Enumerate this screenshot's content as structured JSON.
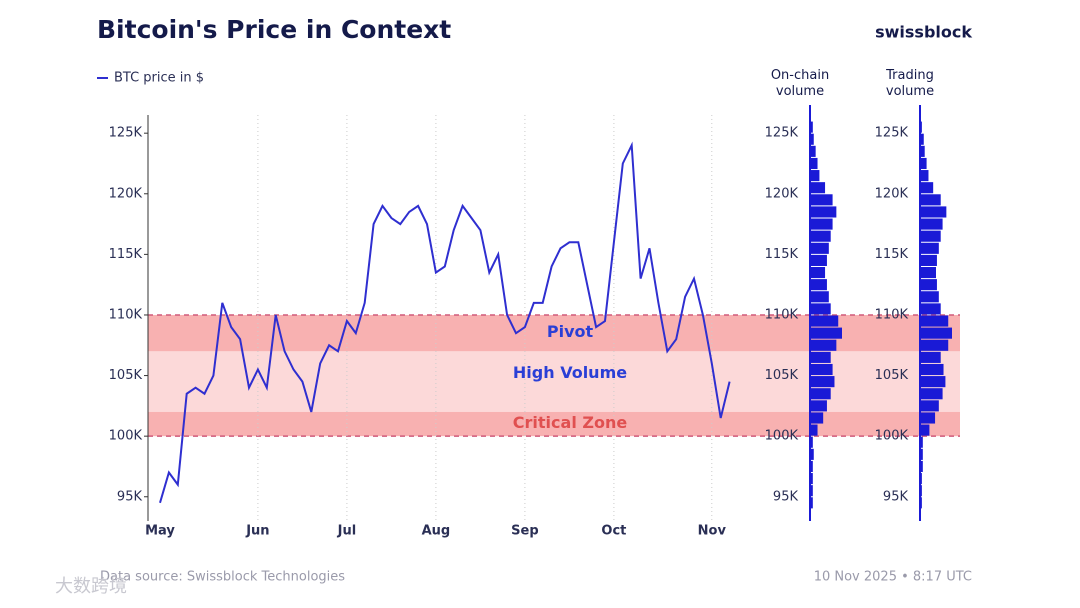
{
  "title": "Bitcoin's Price in Context",
  "brand": "swissblock",
  "source": "Data source: Swissblock Technologies",
  "timestamp": "10 Nov 2025 • 8:17 UTC",
  "watermark": "大数跨境",
  "chart_data": {
    "type": "line",
    "legend": "BTC price in $",
    "color": "#2f2fd0",
    "categories": [
      "May",
      null,
      null,
      null,
      null,
      null,
      null,
      null,
      null,
      null,
      null,
      "Jun",
      null,
      null,
      null,
      null,
      null,
      null,
      null,
      null,
      null,
      "Jul",
      null,
      null,
      null,
      null,
      null,
      null,
      null,
      null,
      null,
      "Aug",
      null,
      null,
      null,
      null,
      null,
      null,
      null,
      null,
      null,
      "Sep",
      null,
      null,
      null,
      null,
      null,
      null,
      null,
      null,
      null,
      "Oct",
      null,
      null,
      null,
      null,
      null,
      null,
      null,
      null,
      null,
      null,
      "Nov",
      null,
      null
    ],
    "values": [
      94500,
      97000,
      96000,
      103500,
      104000,
      103500,
      105000,
      111000,
      109000,
      108000,
      104000,
      105500,
      104000,
      110000,
      107000,
      105500,
      104500,
      102000,
      106000,
      107500,
      107000,
      109500,
      108500,
      111000,
      117500,
      119000,
      118000,
      117500,
      118500,
      119000,
      117500,
      113500,
      114000,
      117000,
      119000,
      118000,
      117000,
      113500,
      115000,
      110000,
      108500,
      109000,
      111000,
      111000,
      114000,
      115500,
      116000,
      116000,
      112500,
      109000,
      109500,
      116000,
      122500,
      124000,
      113000,
      115500,
      111000,
      107000,
      108000,
      111500,
      113000,
      110000,
      106000,
      101500,
      104500
    ],
    "ylim": [
      93000,
      126500
    ],
    "yticks": [
      {
        "value": 95000,
        "label": "95K"
      },
      {
        "value": 100000,
        "label": "100K"
      },
      {
        "value": 105000,
        "label": "105K"
      },
      {
        "value": 110000,
        "label": "110K"
      },
      {
        "value": 115000,
        "label": "115K"
      },
      {
        "value": 120000,
        "label": "120K"
      },
      {
        "value": 125000,
        "label": "125K"
      }
    ],
    "grid": true,
    "zones": [
      {
        "label": "Pivot",
        "from": 107000,
        "to": 110000,
        "fill": "#f7a3a3",
        "color": "#2a3fd6"
      },
      {
        "label": "High Volume",
        "from": 102000,
        "to": 107000,
        "fill": "#fcd2d2",
        "color": "#2a3fd6"
      },
      {
        "label": "Critical Zone",
        "from": 100000,
        "to": 102000,
        "fill": "#f7a3a3",
        "color": "#e05050"
      }
    ],
    "dashed_levels": [
      100000,
      110000
    ],
    "profiles": [
      {
        "name": "On-chain volume",
        "color": "#1a1ad6",
        "bins": [
          94000,
          95000,
          96000,
          97000,
          98000,
          99000,
          100000,
          101000,
          102000,
          103000,
          104000,
          105000,
          106000,
          107000,
          108000,
          109000,
          110000,
          111000,
          112000,
          113000,
          114000,
          115000,
          116000,
          117000,
          118000,
          119000,
          120000,
          121000,
          122000,
          123000,
          124000,
          125000,
          126000
        ],
        "values": [
          3,
          3,
          3,
          3,
          4,
          3,
          8,
          14,
          18,
          22,
          26,
          24,
          22,
          28,
          34,
          30,
          22,
          20,
          18,
          16,
          18,
          20,
          22,
          24,
          28,
          24,
          16,
          10,
          8,
          6,
          4,
          3
        ]
      },
      {
        "name": "Trading volume",
        "color": "#1a1ad6",
        "bins": [
          94000,
          95000,
          96000,
          97000,
          98000,
          99000,
          100000,
          101000,
          102000,
          103000,
          104000,
          105000,
          106000,
          107000,
          108000,
          109000,
          110000,
          111000,
          112000,
          113000,
          114000,
          115000,
          116000,
          117000,
          118000,
          119000,
          120000,
          121000,
          122000,
          123000,
          124000,
          125000,
          126000
        ],
        "values": [
          2,
          2,
          2,
          3,
          3,
          3,
          10,
          16,
          20,
          24,
          27,
          25,
          22,
          30,
          34,
          30,
          22,
          20,
          18,
          17,
          18,
          20,
          22,
          24,
          28,
          22,
          14,
          9,
          7,
          5,
          4,
          2
        ]
      }
    ]
  }
}
